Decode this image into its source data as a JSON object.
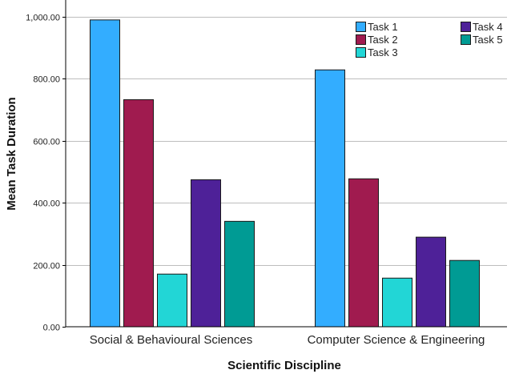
{
  "chart_data": {
    "type": "bar",
    "title": "",
    "xlabel": "Scientific Discipline",
    "ylabel": "Mean Task Duration",
    "categories": [
      "Social & Behavioural Sciences",
      "Computer Science & Engineering"
    ],
    "series": [
      {
        "name": "Task 1",
        "color": "#33adff",
        "values": [
          990,
          829
        ]
      },
      {
        "name": "Task 2",
        "color": "#a01b4f",
        "values": [
          733,
          478
        ]
      },
      {
        "name": "Task 3",
        "color": "#22d6d6",
        "values": [
          171,
          158
        ]
      },
      {
        "name": "Task 4",
        "color": "#4e2198",
        "values": [
          475,
          290
        ]
      },
      {
        "name": "Task 5",
        "color": "#009b94",
        "values": [
          341,
          215
        ]
      }
    ],
    "yticks": [
      "0.00",
      "200.00",
      "400.00",
      "600.00",
      "800.00",
      "1,000.00"
    ],
    "ytick_values": [
      0,
      200,
      400,
      600,
      800,
      1000
    ],
    "ylim": [
      0,
      1050
    ],
    "grid": true,
    "legend_position": "top-right"
  }
}
